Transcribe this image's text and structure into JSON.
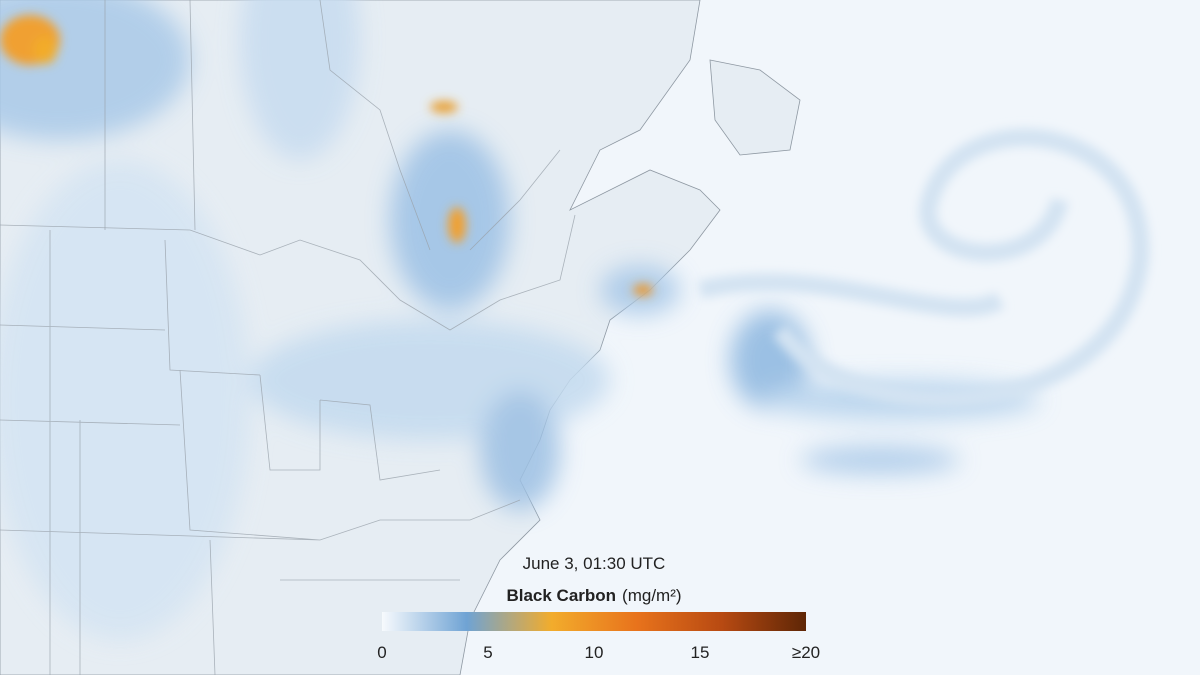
{
  "legend": {
    "timestamp": "June 3, 01:30 UTC",
    "title": "Black Carbon",
    "unit": "(mg/m²)",
    "range": [
      0,
      20
    ],
    "ticks": [
      0,
      5,
      10,
      15,
      {
        "value": 20,
        "label": "≥20"
      }
    ],
    "colors": [
      "#f7fafd",
      "#6fa3d4",
      "#f2ac2c",
      "#e8731c",
      "#b84a12",
      "#5e2606"
    ]
  }
}
